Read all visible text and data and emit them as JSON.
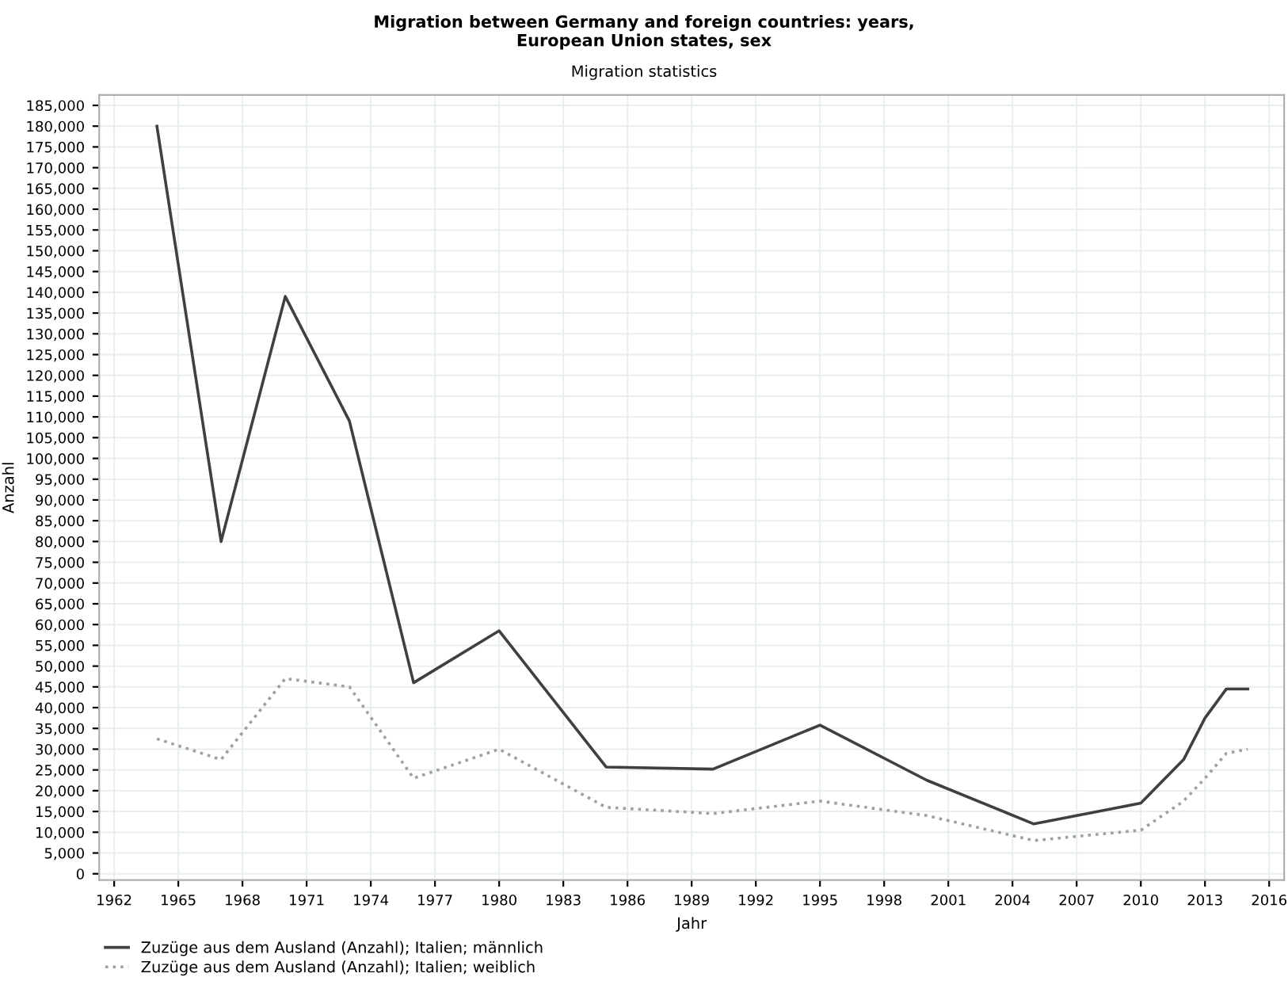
{
  "chart_data": {
    "type": "line",
    "title": "Migration between Germany and foreign countries: years,\nEuropean Union states, sex",
    "subtitle": "Migration statistics",
    "xlabel": "Jahr",
    "ylabel": "Anzahl",
    "x": [
      1964,
      1967,
      1970,
      1973,
      1976,
      1980,
      1985,
      1990,
      1995,
      2000,
      2005,
      2010,
      2012,
      2013,
      2014,
      2015
    ],
    "series": [
      {
        "name": "Zuzüge aus dem Ausland (Anzahl); Italien; männlich",
        "color": "#404040",
        "line_style": "solid",
        "values": [
          180000,
          80000,
          139000,
          109000,
          46000,
          58500,
          25700,
          25200,
          35800,
          22500,
          12000,
          17000,
          27500,
          37500,
          44500,
          44500
        ]
      },
      {
        "name": "Zuzüge aus dem Ausland (Anzahl); Italien; weiblich",
        "color": "#a0a0a0",
        "line_style": "dotted",
        "values": [
          32500,
          27500,
          47000,
          45000,
          23000,
          30000,
          16000,
          14500,
          17500,
          14000,
          8000,
          10500,
          17500,
          23000,
          29000,
          30000
        ]
      }
    ],
    "xlim": [
      1961.3,
      2016.7
    ],
    "xticks": [
      1962,
      1965,
      1968,
      1971,
      1974,
      1977,
      1980,
      1983,
      1986,
      1989,
      1992,
      1995,
      1998,
      2001,
      2004,
      2007,
      2010,
      2013,
      2016
    ],
    "ylim": [
      -1500,
      187500
    ],
    "yticks": [
      {
        "value": 0,
        "label": "0"
      },
      {
        "value": 5000,
        "label": "5,000"
      },
      {
        "value": 10000,
        "label": "10,000"
      },
      {
        "value": 15000,
        "label": "15,000"
      },
      {
        "value": 20000,
        "label": "20,000"
      },
      {
        "value": 25000,
        "label": "25,000"
      },
      {
        "value": 30000,
        "label": "30,000"
      },
      {
        "value": 35000,
        "label": "35,000"
      },
      {
        "value": 40000,
        "label": "40,000"
      },
      {
        "value": 45000,
        "label": "45,000"
      },
      {
        "value": 50000,
        "label": "50,000"
      },
      {
        "value": 55000,
        "label": "55,000"
      },
      {
        "value": 60000,
        "label": "60,000"
      },
      {
        "value": 65000,
        "label": "65,000"
      },
      {
        "value": 70000,
        "label": "70,000"
      },
      {
        "value": 75000,
        "label": "75,000"
      },
      {
        "value": 80000,
        "label": "80,000"
      },
      {
        "value": 85000,
        "label": "85,000"
      },
      {
        "value": 90000,
        "label": "90,000"
      },
      {
        "value": 95000,
        "label": "95,000"
      },
      {
        "value": 100000,
        "label": "100,000"
      },
      {
        "value": 105000,
        "label": "105,000"
      },
      {
        "value": 110000,
        "label": "110,000"
      },
      {
        "value": 115000,
        "label": "115,000"
      },
      {
        "value": 120000,
        "label": "120,000"
      },
      {
        "value": 125000,
        "label": "125,000"
      },
      {
        "value": 130000,
        "label": "130,000"
      },
      {
        "value": 135000,
        "label": "135,000"
      },
      {
        "value": 140000,
        "label": "140,000"
      },
      {
        "value": 145000,
        "label": "145,000"
      },
      {
        "value": 150000,
        "label": "150,000"
      },
      {
        "value": 155000,
        "label": "155,000"
      },
      {
        "value": 160000,
        "label": "160,000"
      },
      {
        "value": 165000,
        "label": "165,000"
      },
      {
        "value": 170000,
        "label": "170,000"
      },
      {
        "value": 175000,
        "label": "175,000"
      },
      {
        "value": 180000,
        "label": "180,000"
      },
      {
        "value": 185000,
        "label": "185,000"
      }
    ],
    "grid": true,
    "legend": "bottom left"
  }
}
